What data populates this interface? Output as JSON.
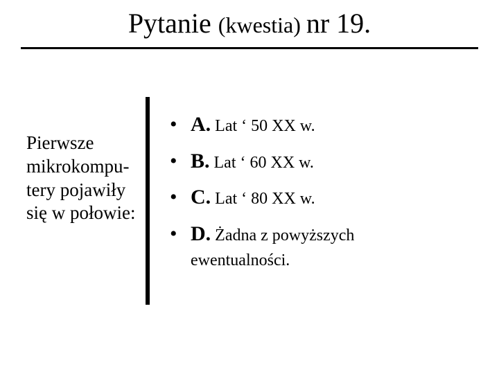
{
  "title": {
    "main": "Pytanie ",
    "sub": "(kwestia) ",
    "num": "nr 19."
  },
  "question": "Pierwsze mikrokompu-tery pojawiły się w połowie:",
  "answers": [
    {
      "letter": "A.",
      "text": " Lat ‘ 50 XX w.",
      "cont": ""
    },
    {
      "letter": "B.",
      "text": " Lat ‘ 60 XX w.",
      "cont": ""
    },
    {
      "letter": "C.",
      "text": " Lat ‘ 80 XX w.",
      "cont": ""
    },
    {
      "letter": "D.",
      "text": " Żadna z powyższych",
      "cont": "ewentualności."
    }
  ],
  "colors": {
    "fg": "#000000",
    "bg": "#ffffff"
  }
}
